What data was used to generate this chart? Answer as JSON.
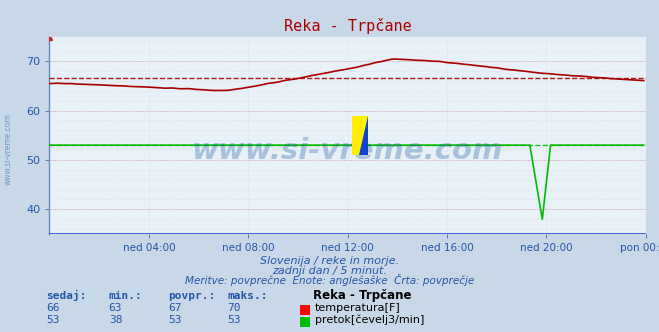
{
  "title": "Reka - Trpčane",
  "bg_color": "#c8d8e8",
  "plot_bg_color": "#e8f0f8",
  "grid_color_major": "#c0c8d8",
  "grid_color_dotted": "#d0d8e8",
  "xlabel_ticks": [
    "ned 04:00",
    "ned 08:00",
    "ned 12:00",
    "ned 16:00",
    "ned 20:00",
    "pon 00:00"
  ],
  "ylim": [
    35,
    75
  ],
  "yticks": [
    40,
    50,
    60,
    70
  ],
  "xlim": [
    0,
    288
  ],
  "avg_temp": 66.5,
  "avg_flow": 53,
  "subtitle1": "Slovenija / reke in morje.",
  "subtitle2": "zadnji dan / 5 minut.",
  "subtitle3": "Meritve: povprečne  Enote: anglešaške  Črta: povprečje",
  "table_headers": [
    "sedaj:",
    "min.:",
    "povpr.:",
    "maks.:"
  ],
  "table_row1": [
    66,
    63,
    67,
    70
  ],
  "table_row2": [
    53,
    38,
    53,
    53
  ],
  "legend_title": "Reka - Trpčane",
  "legend_label1": "temperatura[F]",
  "legend_label2": "pretok[čevelj3/min]",
  "watermark": "www.si-vreme.com",
  "watermark_color": "#1a5a9a",
  "text_color": "#2255aa",
  "temp_color": "#aa0000",
  "flow_color": "#00bb00",
  "left_label": "www.si-vreme.com"
}
